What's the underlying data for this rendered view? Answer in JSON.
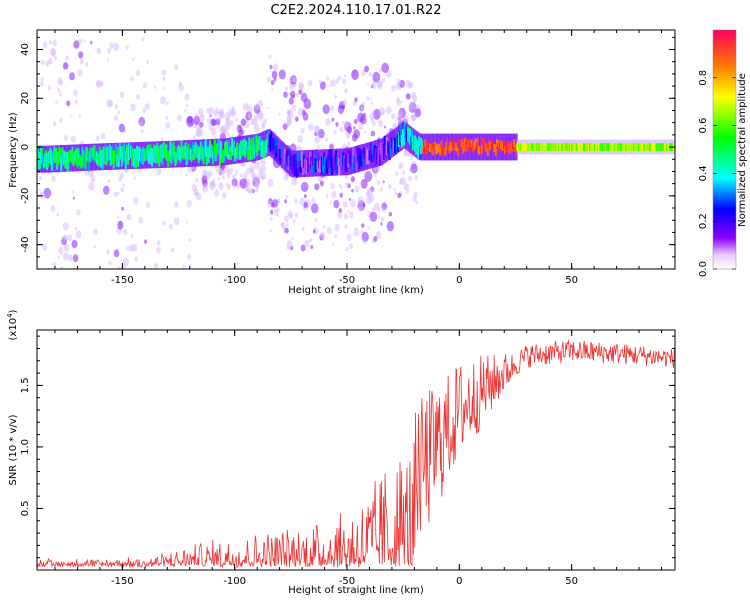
{
  "title": "C2E2.2024.110.17.01.R22",
  "chart_data": [
    {
      "type": "heatmap",
      "xlabel": "Height of straight line (km)",
      "ylabel": "Frequency (Hz)",
      "xlim": [
        -188,
        96
      ],
      "ylim": [
        -50,
        48
      ],
      "x_ticks": [
        -150,
        -100,
        -50,
        0,
        50
      ],
      "y_ticks": [
        -40,
        -20,
        0,
        20,
        40
      ],
      "colorbar": {
        "label": "Normalized spectral amplitude",
        "range": [
          0,
          1
        ],
        "ticks": [
          "0.0",
          "0.2",
          "0.4",
          "0.6",
          "0.8"
        ]
      },
      "ridge": {
        "description_points": [
          {
            "x": -185,
            "y": -5
          },
          {
            "x": -160,
            "y": -4
          },
          {
            "x": -130,
            "y": -3
          },
          {
            "x": -105,
            "y": -2
          },
          {
            "x": -90,
            "y": 0
          },
          {
            "x": -85,
            "y": 2
          },
          {
            "x": -75,
            "y": -7
          },
          {
            "x": -50,
            "y": -6
          },
          {
            "x": -35,
            "y": -2
          },
          {
            "x": -25,
            "y": 5
          },
          {
            "x": -18,
            "y": 0
          },
          {
            "x": 0,
            "y": 0
          },
          {
            "x": 20,
            "y": 0
          },
          {
            "x": 96,
            "y": 0
          }
        ],
        "amplitude_segments": [
          {
            "x_start": -188,
            "x_end": -85,
            "level": 0.45
          },
          {
            "x_start": -85,
            "x_end": -30,
            "level": 0.2
          },
          {
            "x_start": -30,
            "x_end": -17,
            "level": 0.35
          },
          {
            "x_start": -17,
            "x_end": 25,
            "level": 0.9
          },
          {
            "x_start": 25,
            "x_end": 96,
            "level": 0.65
          }
        ]
      }
    },
    {
      "type": "line",
      "xlabel": "Height of straight line (km)",
      "ylabel": "SNR (10 * v/v)",
      "y_multiplier": "(x10",
      "y_multiplier_exp": "4",
      "y_multiplier_close": ")",
      "xlim": [
        -188,
        96
      ],
      "ylim": [
        0,
        1.95
      ],
      "x_ticks": [
        -150,
        -100,
        -50,
        0,
        50
      ],
      "y_ticks": [
        "0.5",
        "1.0",
        "1.5"
      ],
      "series": [
        {
          "color": "#ee3333",
          "envelope": [
            {
              "x": -188,
              "y": 0.03
            },
            {
              "x": -160,
              "y": 0.03
            },
            {
              "x": -140,
              "y": 0.04
            },
            {
              "x": -130,
              "y": 0.08
            },
            {
              "x": -110,
              "y": 0.15
            },
            {
              "x": -90,
              "y": 0.2
            },
            {
              "x": -70,
              "y": 0.22
            },
            {
              "x": -50,
              "y": 0.3
            },
            {
              "x": -40,
              "y": 0.42
            },
            {
              "x": -30,
              "y": 0.6
            },
            {
              "x": -20,
              "y": 0.72
            },
            {
              "x": -10,
              "y": 1.0
            },
            {
              "x": 0,
              "y": 1.3
            },
            {
              "x": 10,
              "y": 1.45
            },
            {
              "x": 20,
              "y": 1.6
            },
            {
              "x": 30,
              "y": 1.74
            },
            {
              "x": 50,
              "y": 1.78
            },
            {
              "x": 70,
              "y": 1.76
            },
            {
              "x": 96,
              "y": 1.72
            }
          ],
          "noise": [
            {
              "x": -188,
              "y": 0.03
            },
            {
              "x": -140,
              "y": 0.03
            },
            {
              "x": -120,
              "y": 0.07
            },
            {
              "x": -90,
              "y": 0.12
            },
            {
              "x": -60,
              "y": 0.2
            },
            {
              "x": -40,
              "y": 0.35
            },
            {
              "x": -25,
              "y": 0.55
            },
            {
              "x": -15,
              "y": 0.6
            },
            {
              "x": -5,
              "y": 0.45
            },
            {
              "x": 10,
              "y": 0.3
            },
            {
              "x": 25,
              "y": 0.1
            },
            {
              "x": 96,
              "y": 0.08
            }
          ]
        }
      ]
    }
  ]
}
